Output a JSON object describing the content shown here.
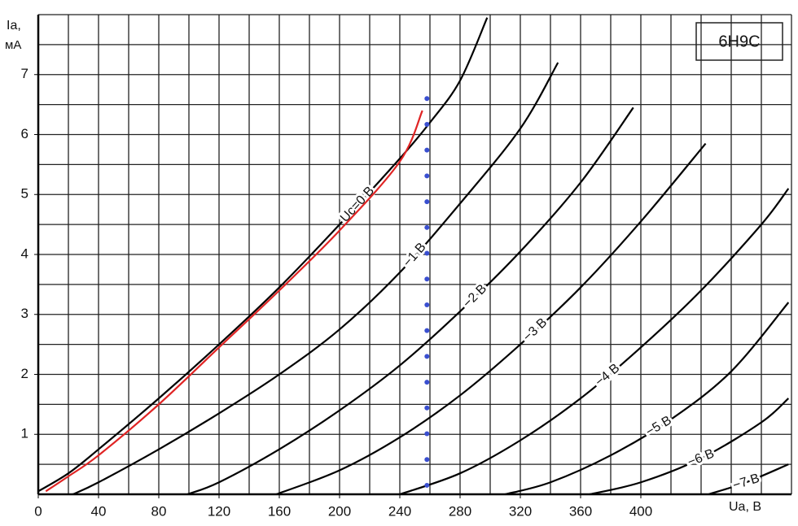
{
  "chart_data": {
    "type": "line",
    "title": "6Н9С",
    "ylabel": "Iа,",
    "yunit": "мА",
    "xlabel": "Uа, В",
    "xlim": [
      0,
      500
    ],
    "ylim": [
      0,
      8
    ],
    "xticks": [
      0,
      40,
      80,
      120,
      160,
      200,
      240,
      280,
      320,
      360,
      400
    ],
    "yticks": [
      1,
      2,
      3,
      4,
      5,
      6,
      7
    ],
    "xgrid": [
      0,
      20,
      40,
      60,
      80,
      100,
      120,
      140,
      160,
      180,
      200,
      220,
      240,
      260,
      280,
      300,
      320,
      340,
      360,
      380,
      400,
      420,
      440,
      460,
      480,
      500
    ],
    "ygrid": [
      0,
      0.5,
      1,
      1.5,
      2,
      2.5,
      3,
      3.5,
      4,
      4.5,
      5,
      5.5,
      6,
      6.5,
      7,
      7.5,
      8
    ],
    "grid": true,
    "series": [
      {
        "name": "Uс=0 В",
        "color": "#000000",
        "x": [
          0,
          20,
          40,
          80,
          120,
          160,
          200,
          240,
          260,
          280,
          298
        ],
        "values": [
          0.05,
          0.35,
          0.75,
          1.6,
          2.5,
          3.45,
          4.5,
          5.6,
          6.2,
          6.9,
          7.95
        ]
      },
      {
        "name": "−1 В",
        "color": "#000000",
        "x": [
          23,
          40,
          80,
          120,
          160,
          200,
          240,
          280,
          320,
          345
        ],
        "values": [
          0,
          0.2,
          0.75,
          1.35,
          2.0,
          2.75,
          3.7,
          4.85,
          6.1,
          7.2
        ]
      },
      {
        "name": "−2 В",
        "color": "#000000",
        "x": [
          99,
          120,
          160,
          200,
          240,
          280,
          320,
          360,
          395
        ],
        "values": [
          0,
          0.2,
          0.75,
          1.4,
          2.15,
          3.05,
          4.05,
          5.2,
          6.45
        ]
      },
      {
        "name": "−3 В",
        "color": "#000000",
        "x": [
          158,
          200,
          240,
          280,
          320,
          360,
          400,
          443
        ],
        "values": [
          0,
          0.4,
          0.95,
          1.65,
          2.5,
          3.45,
          4.55,
          5.85
        ]
      },
      {
        "name": "−4 В",
        "color": "#000000",
        "x": [
          240,
          280,
          320,
          360,
          400,
          440,
          480,
          498
        ],
        "values": [
          0,
          0.35,
          0.9,
          1.6,
          2.45,
          3.4,
          4.5,
          5.1
        ]
      },
      {
        "name": "−5 В",
        "color": "#000000",
        "x": [
          310,
          340,
          380,
          420,
          460,
          498
        ],
        "values": [
          0,
          0.2,
          0.65,
          1.25,
          2.05,
          3.2
        ]
      },
      {
        "name": "−6 В",
        "color": "#000000",
        "x": [
          366,
          400,
          440,
          480,
          498
        ],
        "values": [
          0,
          0.2,
          0.6,
          1.2,
          1.6
        ]
      },
      {
        "name": "−7 В",
        "color": "#000000",
        "x": [
          445,
          470,
          498
        ],
        "values": [
          0,
          0.2,
          0.5
        ]
      },
      {
        "color": "#e02424",
        "x": [
          5,
          20,
          40,
          80,
          120,
          160,
          200,
          240,
          255
        ],
        "values": [
          0.05,
          0.3,
          0.65,
          1.5,
          2.45,
          3.4,
          4.4,
          5.55,
          6.4
        ]
      },
      {
        "color": "#3a4fd0",
        "markers": "dots",
        "x": [
          258,
          258,
          258,
          258,
          258,
          258,
          258,
          258,
          258,
          258,
          258,
          258,
          258,
          258,
          258,
          258
        ],
        "values": [
          0.15,
          0.58,
          1.01,
          1.44,
          1.87,
          2.3,
          2.73,
          3.16,
          3.59,
          4.02,
          4.45,
          4.88,
          5.31,
          5.74,
          6.17,
          6.6
        ]
      }
    ]
  }
}
